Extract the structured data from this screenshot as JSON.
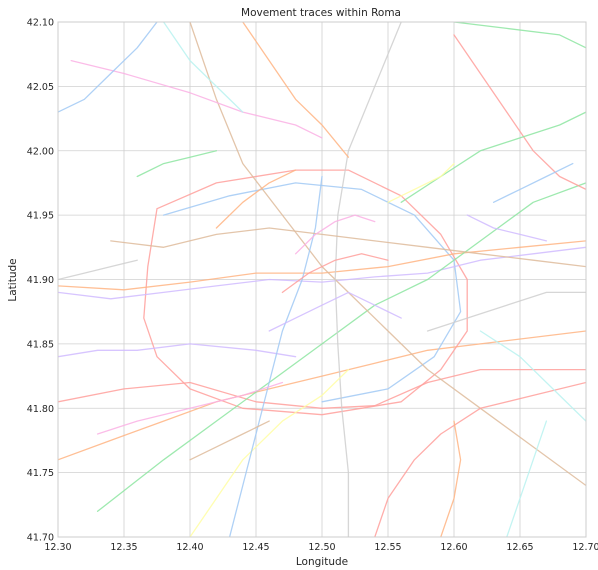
{
  "chart_data": {
    "type": "line",
    "title": "Movement traces within Roma",
    "xlabel": "Longitude",
    "ylabel": "Latitude",
    "xlim": [
      12.3,
      12.7
    ],
    "ylim": [
      41.7,
      42.1
    ],
    "x_ticks": [
      12.3,
      12.35,
      12.4,
      12.45,
      12.5,
      12.55,
      12.6,
      12.65,
      12.7
    ],
    "y_ticks": [
      41.7,
      41.75,
      41.8,
      41.85,
      41.9,
      41.95,
      42.0,
      42.05,
      42.1
    ],
    "x_tick_labels": [
      "12.30",
      "12.35",
      "12.40",
      "12.45",
      "12.50",
      "12.55",
      "12.60",
      "12.65",
      "12.70"
    ],
    "y_tick_labels": [
      "41.70",
      "41.75",
      "41.80",
      "41.85",
      "41.90",
      "41.95",
      "42.00",
      "42.05",
      "42.10"
    ],
    "grid": true,
    "legend": "none",
    "palette": [
      "#a1c9f4",
      "#ffb482",
      "#8de5a1",
      "#ff9f9b",
      "#d0bbff",
      "#debb9b",
      "#fab0e4",
      "#cfcfcf",
      "#fffea3",
      "#b9f2f0"
    ],
    "series": [
      {
        "color": "#ff9f9b",
        "points": [
          [
            12.3,
            41.805
          ],
          [
            12.35,
            41.815
          ],
          [
            12.4,
            41.82
          ],
          [
            12.45,
            41.805
          ],
          [
            12.5,
            41.8
          ],
          [
            12.54,
            41.802
          ],
          [
            12.58,
            41.82
          ],
          [
            12.62,
            41.83
          ],
          [
            12.7,
            41.83
          ]
        ]
      },
      {
        "color": "#ffb482",
        "points": [
          [
            12.3,
            41.76
          ],
          [
            12.34,
            41.775
          ],
          [
            12.38,
            41.79
          ],
          [
            12.42,
            41.805
          ],
          [
            12.46,
            41.815
          ],
          [
            12.5,
            41.825
          ],
          [
            12.54,
            41.835
          ],
          [
            12.58,
            41.845
          ],
          [
            12.62,
            41.85
          ],
          [
            12.7,
            41.86
          ]
        ]
      },
      {
        "color": "#ff9f9b",
        "points": [
          [
            12.375,
            41.955
          ],
          [
            12.42,
            41.975
          ],
          [
            12.48,
            41.985
          ],
          [
            12.52,
            41.985
          ],
          [
            12.56,
            41.965
          ],
          [
            12.59,
            41.935
          ],
          [
            12.61,
            41.9
          ],
          [
            12.61,
            41.86
          ],
          [
            12.59,
            41.83
          ],
          [
            12.56,
            41.805
          ],
          [
            12.5,
            41.795
          ],
          [
            12.44,
            41.8
          ],
          [
            12.4,
            41.815
          ],
          [
            12.375,
            41.84
          ],
          [
            12.365,
            41.87
          ],
          [
            12.368,
            41.91
          ],
          [
            12.375,
            41.955
          ]
        ]
      },
      {
        "color": "#a1c9f4",
        "points": [
          [
            12.38,
            41.95
          ],
          [
            12.43,
            41.965
          ],
          [
            12.48,
            41.975
          ],
          [
            12.53,
            41.97
          ],
          [
            12.57,
            41.95
          ],
          [
            12.6,
            41.915
          ],
          [
            12.605,
            41.875
          ],
          [
            12.585,
            41.84
          ],
          [
            12.55,
            41.815
          ],
          [
            12.5,
            41.805
          ]
        ]
      },
      {
        "color": "#d0bbff",
        "points": [
          [
            12.3,
            41.89
          ],
          [
            12.34,
            41.885
          ],
          [
            12.38,
            41.89
          ],
          [
            12.42,
            41.895
          ],
          [
            12.46,
            41.9
          ],
          [
            12.5,
            41.898
          ],
          [
            12.54,
            41.902
          ],
          [
            12.58,
            41.905
          ],
          [
            12.62,
            41.915
          ],
          [
            12.66,
            41.92
          ],
          [
            12.7,
            41.925
          ]
        ]
      },
      {
        "color": "#ffb482",
        "points": [
          [
            12.3,
            41.895
          ],
          [
            12.35,
            41.892
          ],
          [
            12.4,
            41.898
          ],
          [
            12.45,
            41.905
          ],
          [
            12.5,
            41.905
          ],
          [
            12.55,
            41.91
          ],
          [
            12.6,
            41.92
          ],
          [
            12.65,
            41.925
          ],
          [
            12.7,
            41.93
          ]
        ]
      },
      {
        "color": "#8de5a1",
        "points": [
          [
            12.33,
            41.72
          ],
          [
            12.38,
            41.76
          ],
          [
            12.42,
            41.79
          ],
          [
            12.46,
            41.82
          ],
          [
            12.5,
            41.85
          ],
          [
            12.54,
            41.88
          ],
          [
            12.58,
            41.9
          ],
          [
            12.62,
            41.93
          ],
          [
            12.66,
            41.96
          ],
          [
            12.7,
            41.975
          ]
        ]
      },
      {
        "color": "#debb9b",
        "points": [
          [
            12.7,
            41.74
          ],
          [
            12.66,
            41.77
          ],
          [
            12.62,
            41.8
          ],
          [
            12.58,
            41.83
          ],
          [
            12.55,
            41.86
          ],
          [
            12.52,
            41.89
          ],
          [
            12.5,
            41.91
          ],
          [
            12.47,
            41.95
          ],
          [
            12.44,
            41.99
          ],
          [
            12.42,
            42.04
          ],
          [
            12.4,
            42.1
          ]
        ]
      },
      {
        "color": "#cfcfcf",
        "points": [
          [
            12.52,
            41.7
          ],
          [
            12.52,
            41.75
          ],
          [
            12.515,
            41.8
          ],
          [
            12.512,
            41.85
          ],
          [
            12.51,
            41.9
          ],
          [
            12.512,
            41.95
          ],
          [
            12.52,
            42.0
          ],
          [
            12.54,
            42.05
          ],
          [
            12.56,
            42.1
          ]
        ]
      },
      {
        "color": "#fab0e4",
        "points": [
          [
            12.31,
            42.07
          ],
          [
            12.35,
            42.06
          ],
          [
            12.4,
            42.045
          ],
          [
            12.44,
            42.03
          ],
          [
            12.48,
            42.02
          ],
          [
            12.5,
            42.01
          ]
        ]
      },
      {
        "color": "#ff9f9b",
        "points": [
          [
            12.6,
            42.09
          ],
          [
            12.62,
            42.06
          ],
          [
            12.64,
            42.03
          ],
          [
            12.66,
            42.0
          ],
          [
            12.68,
            41.98
          ],
          [
            12.7,
            41.97
          ]
        ]
      },
      {
        "color": "#8de5a1",
        "points": [
          [
            12.6,
            42.1
          ],
          [
            12.64,
            42.095
          ],
          [
            12.68,
            42.09
          ],
          [
            12.7,
            42.08
          ]
        ]
      },
      {
        "color": "#a1c9f4",
        "points": [
          [
            12.3,
            42.03
          ],
          [
            12.32,
            42.04
          ],
          [
            12.34,
            42.06
          ],
          [
            12.36,
            42.08
          ],
          [
            12.375,
            42.1
          ]
        ]
      },
      {
        "color": "#ffb482",
        "points": [
          [
            12.44,
            42.1
          ],
          [
            12.46,
            42.07
          ],
          [
            12.48,
            42.04
          ],
          [
            12.5,
            42.02
          ],
          [
            12.52,
            41.995
          ]
        ]
      },
      {
        "color": "#b9f2f0",
        "points": [
          [
            12.38,
            42.1
          ],
          [
            12.4,
            42.07
          ],
          [
            12.42,
            42.05
          ],
          [
            12.44,
            42.03
          ]
        ]
      },
      {
        "color": "#fffea3",
        "points": [
          [
            12.4,
            41.7
          ],
          [
            12.42,
            41.73
          ],
          [
            12.44,
            41.76
          ],
          [
            12.47,
            41.79
          ],
          [
            12.5,
            41.81
          ],
          [
            12.52,
            41.83
          ]
        ]
      },
      {
        "color": "#d0bbff",
        "points": [
          [
            12.3,
            41.84
          ],
          [
            12.33,
            41.845
          ],
          [
            12.36,
            41.845
          ],
          [
            12.4,
            41.85
          ],
          [
            12.45,
            41.845
          ],
          [
            12.48,
            41.84
          ]
        ]
      },
      {
        "color": "#a1c9f4",
        "points": [
          [
            12.43,
            41.7
          ],
          [
            12.44,
            41.74
          ],
          [
            12.45,
            41.78
          ],
          [
            12.46,
            41.82
          ],
          [
            12.47,
            41.86
          ],
          [
            12.485,
            41.9
          ],
          [
            12.495,
            41.94
          ],
          [
            12.5,
            41.98
          ]
        ]
      },
      {
        "color": "#ff9f9b",
        "points": [
          [
            12.54,
            41.7
          ],
          [
            12.55,
            41.73
          ],
          [
            12.57,
            41.76
          ],
          [
            12.59,
            41.78
          ],
          [
            12.62,
            41.8
          ],
          [
            12.66,
            41.81
          ],
          [
            12.7,
            41.82
          ]
        ]
      },
      {
        "color": "#debb9b",
        "points": [
          [
            12.34,
            41.93
          ],
          [
            12.38,
            41.925
          ],
          [
            12.42,
            41.935
          ],
          [
            12.46,
            41.94
          ],
          [
            12.5,
            41.935
          ],
          [
            12.54,
            41.93
          ],
          [
            12.58,
            41.925
          ],
          [
            12.62,
            41.92
          ],
          [
            12.66,
            41.915
          ],
          [
            12.7,
            41.91
          ]
        ]
      },
      {
        "color": "#fab0e4",
        "points": [
          [
            12.33,
            41.78
          ],
          [
            12.36,
            41.79
          ],
          [
            12.4,
            41.8
          ],
          [
            12.44,
            41.81
          ],
          [
            12.47,
            41.82
          ]
        ]
      },
      {
        "color": "#b9f2f0",
        "points": [
          [
            12.62,
            41.86
          ],
          [
            12.65,
            41.84
          ],
          [
            12.68,
            41.81
          ],
          [
            12.7,
            41.79
          ]
        ]
      },
      {
        "color": "#8de5a1",
        "points": [
          [
            12.56,
            41.96
          ],
          [
            12.59,
            41.98
          ],
          [
            12.62,
            42.0
          ],
          [
            12.65,
            42.01
          ],
          [
            12.68,
            42.02
          ],
          [
            12.7,
            42.03
          ]
        ]
      },
      {
        "color": "#cfcfcf",
        "points": [
          [
            12.58,
            41.86
          ],
          [
            12.61,
            41.87
          ],
          [
            12.64,
            41.88
          ],
          [
            12.67,
            41.89
          ],
          [
            12.7,
            41.89
          ]
        ]
      },
      {
        "color": "#ffb482",
        "points": [
          [
            12.59,
            41.7
          ],
          [
            12.6,
            41.73
          ],
          [
            12.605,
            41.76
          ],
          [
            12.6,
            41.79
          ]
        ]
      },
      {
        "color": "#d0bbff",
        "points": [
          [
            12.46,
            41.86
          ],
          [
            12.48,
            41.87
          ],
          [
            12.5,
            41.88
          ],
          [
            12.52,
            41.89
          ],
          [
            12.54,
            41.88
          ],
          [
            12.56,
            41.87
          ]
        ]
      },
      {
        "color": "#fffea3",
        "points": [
          [
            12.55,
            41.96
          ],
          [
            12.57,
            41.97
          ],
          [
            12.59,
            41.98
          ],
          [
            12.6,
            41.99
          ]
        ]
      },
      {
        "color": "#a1c9f4",
        "points": [
          [
            12.63,
            41.96
          ],
          [
            12.65,
            41.97
          ],
          [
            12.67,
            41.98
          ],
          [
            12.69,
            41.99
          ]
        ]
      },
      {
        "color": "#ff9f9b",
        "points": [
          [
            12.47,
            41.89
          ],
          [
            12.49,
            41.905
          ],
          [
            12.51,
            41.915
          ],
          [
            12.53,
            41.92
          ],
          [
            12.55,
            41.915
          ]
        ]
      },
      {
        "color": "#debb9b",
        "points": [
          [
            12.4,
            41.76
          ],
          [
            12.42,
            41.77
          ],
          [
            12.44,
            41.78
          ],
          [
            12.46,
            41.79
          ]
        ]
      },
      {
        "color": "#fab0e4",
        "points": [
          [
            12.48,
            41.92
          ],
          [
            12.495,
            41.935
          ],
          [
            12.51,
            41.945
          ],
          [
            12.525,
            41.95
          ],
          [
            12.54,
            41.945
          ]
        ]
      },
      {
        "color": "#8de5a1",
        "points": [
          [
            12.36,
            41.98
          ],
          [
            12.38,
            41.99
          ],
          [
            12.4,
            41.995
          ],
          [
            12.42,
            42.0
          ]
        ]
      },
      {
        "color": "#cfcfcf",
        "points": [
          [
            12.3,
            41.9
          ],
          [
            12.32,
            41.905
          ],
          [
            12.34,
            41.91
          ],
          [
            12.36,
            41.915
          ]
        ]
      },
      {
        "color": "#b9f2f0",
        "points": [
          [
            12.64,
            41.7
          ],
          [
            12.65,
            41.73
          ],
          [
            12.66,
            41.76
          ],
          [
            12.67,
            41.79
          ]
        ]
      },
      {
        "color": "#ffb482",
        "points": [
          [
            12.42,
            41.94
          ],
          [
            12.44,
            41.96
          ],
          [
            12.46,
            41.975
          ],
          [
            12.48,
            41.985
          ]
        ]
      },
      {
        "color": "#d0bbff",
        "points": [
          [
            12.61,
            41.95
          ],
          [
            12.63,
            41.94
          ],
          [
            12.65,
            41.935
          ],
          [
            12.67,
            41.93
          ]
        ]
      }
    ]
  }
}
